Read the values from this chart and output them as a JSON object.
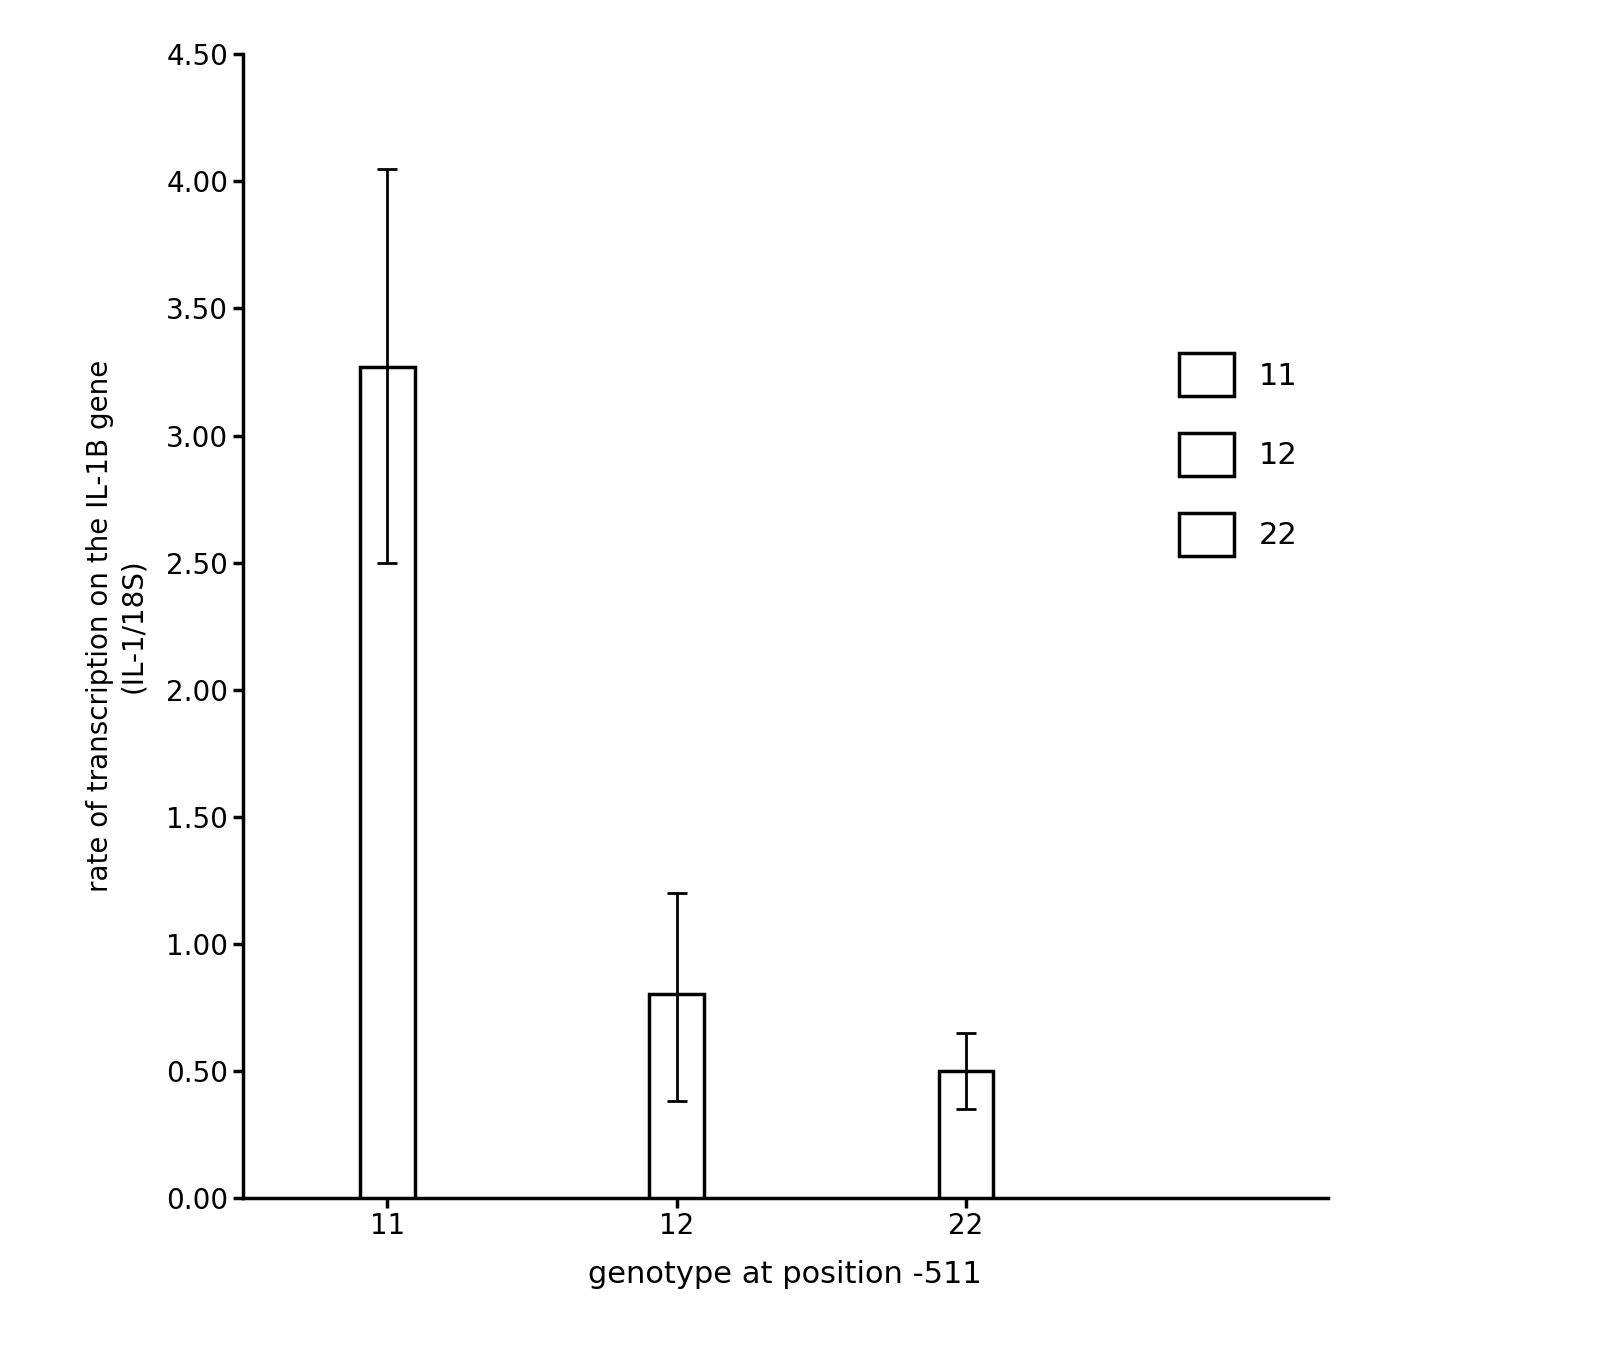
{
  "categories": [
    "11",
    "12",
    "22"
  ],
  "values": [
    3.27,
    0.8,
    0.5
  ],
  "errors_upper": [
    0.78,
    0.4,
    0.15
  ],
  "errors_lower": [
    0.77,
    0.42,
    0.15
  ],
  "bar_color": "#ffffff",
  "bar_edgecolor": "#000000",
  "bar_linewidth": 2.5,
  "bar_width": 0.38,
  "xlabel": "genotype at position -511",
  "ylabel": "rate of transcription on the IL-1B gene\n(IL-1/18S)",
  "ylim": [
    0.0,
    4.5
  ],
  "yticks": [
    0.0,
    0.5,
    1.0,
    1.5,
    2.0,
    2.5,
    3.0,
    3.5,
    4.0,
    4.5
  ],
  "ytick_labels": [
    "0.00",
    "0.50",
    "1.00",
    "1.50",
    "2.00",
    "2.50",
    "3.00",
    "3.50",
    "4.00",
    "4.50"
  ],
  "legend_labels": [
    "11",
    "12",
    "22"
  ],
  "background_color": "#ffffff",
  "errorbar_capsize": 7,
  "errorbar_linewidth": 2.0,
  "xlabel_fontsize": 22,
  "ylabel_fontsize": 20,
  "tick_fontsize": 20,
  "legend_fontsize": 22,
  "x_positions": [
    1,
    3,
    5
  ],
  "xlim": [
    0,
    7.5
  ]
}
